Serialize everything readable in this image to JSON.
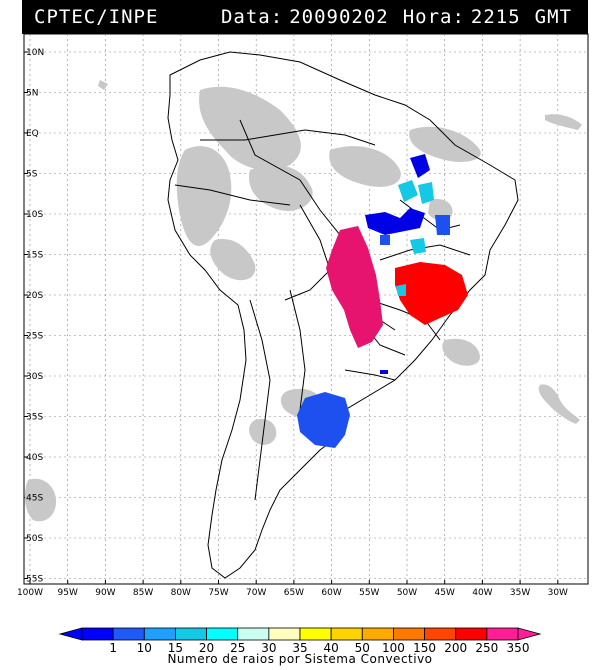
{
  "header": {
    "source": "CPTEC/INPE",
    "date_label": "Data:",
    "date_value": "20090202",
    "time_label": "Hora:",
    "time_value": "2215",
    "tz": "GMT"
  },
  "axes": {
    "lat_labels": [
      "10N",
      "5N",
      "EQ",
      "5S",
      "10S",
      "15S",
      "20S",
      "25S",
      "30S",
      "35S",
      "40S",
      "45S",
      "50S",
      "55S"
    ],
    "lon_labels": [
      "100W",
      "95W",
      "90W",
      "85W",
      "80W",
      "75W",
      "70W",
      "65W",
      "60W",
      "55W",
      "50W",
      "45W",
      "40W",
      "35W",
      "30W"
    ]
  },
  "legend": {
    "caption": "Numero de raios por Sistema Convectivo",
    "labels": [
      "1",
      "10",
      "15",
      "20",
      "25",
      "30",
      "35",
      "40",
      "50",
      "100",
      "150",
      "200",
      "250",
      "350"
    ],
    "colors": [
      "#0000ff",
      "#1e5af5",
      "#1ea0ff",
      "#14c8e6",
      "#00ffff",
      "#c8fff0",
      "#ffffbe",
      "#ffff00",
      "#ffd200",
      "#ffaa00",
      "#ff7800",
      "#ff4600",
      "#ff0000",
      "#ff1e96"
    ]
  },
  "colors": {
    "cloud": "#c8c8c8",
    "storm_red": "#ff0000",
    "storm_magenta": "#e6146e",
    "storm_blue": "#1e50f0",
    "storm_navy": "#0000e6",
    "storm_cyan": "#14c8e6"
  }
}
